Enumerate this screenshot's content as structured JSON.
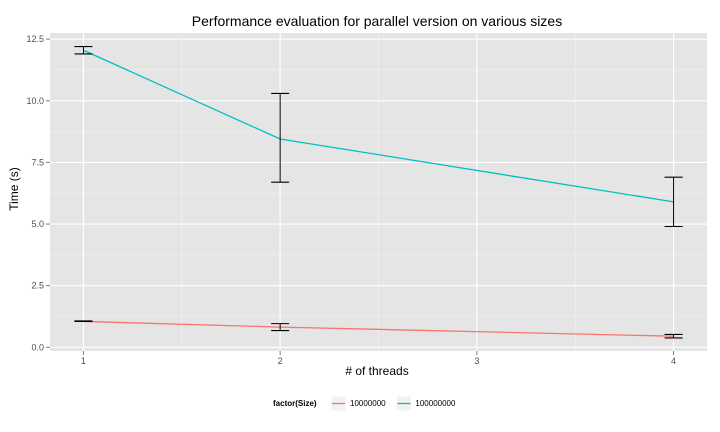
{
  "chart_data": {
    "type": "line",
    "title": "Performance evaluation for parallel version on various sizes",
    "xlabel": "# of threads",
    "ylabel": "Time (s)",
    "x_ticks": [
      "1",
      "2",
      "3",
      "4"
    ],
    "y_ticks": [
      "0.0",
      "2.5",
      "5.0",
      "7.5",
      "10.0",
      "12.5"
    ],
    "xlim": [
      0.83,
      4.17
    ],
    "ylim": [
      -0.15,
      12.75
    ],
    "grid": true,
    "legend_position": "bottom",
    "legend_title": "factor(Size)",
    "series": [
      {
        "name": "10000000",
        "color": "#F8766D",
        "x": [
          1,
          2,
          4
        ],
        "y": [
          1.05,
          0.82,
          0.45
        ],
        "error_low": [
          1.05,
          0.68,
          0.38
        ],
        "error_high": [
          1.07,
          0.96,
          0.52
        ]
      },
      {
        "name": "100000000",
        "color": "#00BFC4",
        "x": [
          1,
          2,
          4
        ],
        "y": [
          12.05,
          8.45,
          5.9
        ],
        "error_low": [
          11.9,
          6.7,
          4.9
        ],
        "error_high": [
          12.2,
          10.3,
          6.9
        ]
      }
    ]
  }
}
